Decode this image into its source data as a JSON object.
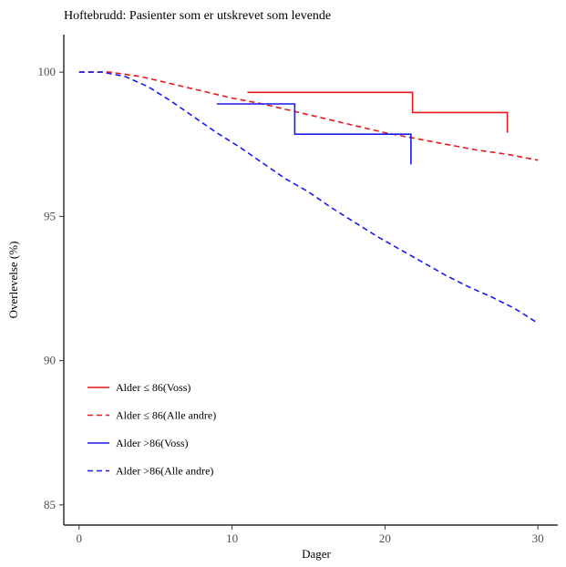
{
  "chart_data": {
    "type": "line",
    "title": "Hoftebrudd: Pasienter som er utskrevet som levende",
    "xlabel": "Dager",
    "ylabel": "Overlevelse (%)",
    "xlim": [
      -1,
      31.3
    ],
    "ylim": [
      84.3,
      101.3
    ],
    "xticks": [
      0,
      10,
      20,
      30
    ],
    "yticks": [
      85,
      90,
      95,
      100
    ],
    "grid": false,
    "legend_position": "bottom-left",
    "series": [
      {
        "name": "Alder ≤ 86(Voss)",
        "color": "#e41a1c",
        "dash": "solid",
        "step": true,
        "points": [
          [
            11,
            99.3
          ],
          [
            21.8,
            99.3
          ],
          [
            21.8,
            98.6
          ],
          [
            28,
            98.6
          ],
          [
            28,
            97.9
          ]
        ]
      },
      {
        "name": "Alder ≤ 86(Alle andre)",
        "color": "#e41a1c",
        "dash": "dashed",
        "step": false,
        "points": [
          [
            0,
            100
          ],
          [
            2,
            100
          ],
          [
            4,
            99.85
          ],
          [
            6,
            99.6
          ],
          [
            8,
            99.35
          ],
          [
            10,
            99.1
          ],
          [
            12,
            98.9
          ],
          [
            14,
            98.65
          ],
          [
            16,
            98.4
          ],
          [
            18,
            98.15
          ],
          [
            20,
            97.9
          ],
          [
            22,
            97.7
          ],
          [
            24,
            97.5
          ],
          [
            26,
            97.3
          ],
          [
            28,
            97.15
          ],
          [
            30,
            96.95
          ]
        ]
      },
      {
        "name": "Alder >86(Voss)",
        "color": "#1a1aee",
        "dash": "solid",
        "step": true,
        "points": [
          [
            9,
            98.9
          ],
          [
            14.1,
            98.9
          ],
          [
            14.1,
            97.85
          ],
          [
            21.7,
            97.85
          ],
          [
            21.7,
            96.8
          ]
        ]
      },
      {
        "name": "Alder >86(Alle andre)",
        "color": "#1a1aee",
        "dash": "dashed",
        "step": false,
        "points": [
          [
            0,
            100
          ],
          [
            1.5,
            100
          ],
          [
            3,
            99.85
          ],
          [
            4.5,
            99.5
          ],
          [
            6,
            99.0
          ],
          [
            7.5,
            98.45
          ],
          [
            9,
            97.9
          ],
          [
            10.5,
            97.4
          ],
          [
            12,
            96.85
          ],
          [
            13.5,
            96.3
          ],
          [
            15,
            95.85
          ],
          [
            16.5,
            95.3
          ],
          [
            18,
            94.8
          ],
          [
            19.5,
            94.3
          ],
          [
            21,
            93.85
          ],
          [
            22.5,
            93.4
          ],
          [
            24,
            92.95
          ],
          [
            25.5,
            92.55
          ],
          [
            27,
            92.2
          ],
          [
            28.5,
            91.8
          ],
          [
            30,
            91.3
          ]
        ]
      }
    ]
  }
}
